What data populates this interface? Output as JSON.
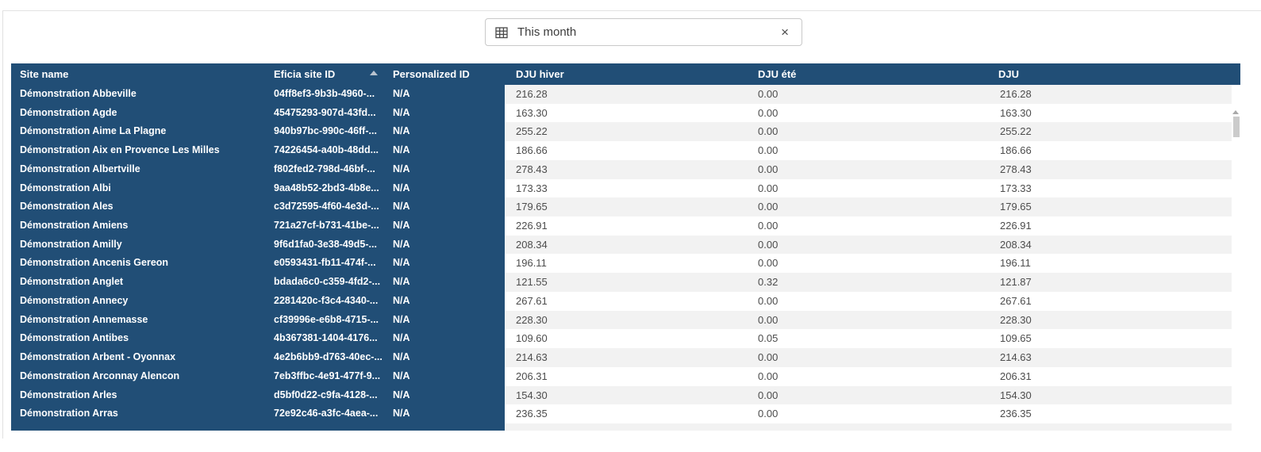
{
  "filter": {
    "icon": "calendar-grid-icon",
    "value": "This month",
    "clear_label": "×"
  },
  "colors": {
    "header_bg": "#214e76",
    "frozen_bg": "#214e76",
    "stripe": "#f2f2f2",
    "header_text": "#ffffff",
    "body_text": "#4c4c4c",
    "border": "#c9c9c9"
  },
  "table": {
    "columns": [
      {
        "key": "site",
        "label": "Site name"
      },
      {
        "key": "id",
        "label": "Eficia site ID",
        "sorted": "asc"
      },
      {
        "key": "pers",
        "label": "Personalized ID"
      },
      {
        "key": "hiver",
        "label": "DJU hiver"
      },
      {
        "key": "ete",
        "label": "DJU été"
      },
      {
        "key": "dju",
        "label": "DJU"
      }
    ],
    "rows": [
      {
        "site": "Démonstration Abbeville",
        "id": "04ff8ef3-9b3b-4960-...",
        "pers": "N/A",
        "hiver": "216.28",
        "ete": "0.00",
        "dju": "216.28"
      },
      {
        "site": "Démonstration Agde",
        "id": "45475293-907d-43fd...",
        "pers": "N/A",
        "hiver": "163.30",
        "ete": "0.00",
        "dju": "163.30"
      },
      {
        "site": "Démonstration Aime La Plagne",
        "id": "940b97bc-990c-46ff-...",
        "pers": "N/A",
        "hiver": "255.22",
        "ete": "0.00",
        "dju": "255.22"
      },
      {
        "site": "Démonstration Aix en Provence Les Milles",
        "id": "74226454-a40b-48dd...",
        "pers": "N/A",
        "hiver": "186.66",
        "ete": "0.00",
        "dju": "186.66"
      },
      {
        "site": "Démonstration Albertville",
        "id": "f802fed2-798d-46bf-...",
        "pers": "N/A",
        "hiver": "278.43",
        "ete": "0.00",
        "dju": "278.43"
      },
      {
        "site": "Démonstration Albi",
        "id": "9aa48b52-2bd3-4b8e...",
        "pers": "N/A",
        "hiver": "173.33",
        "ete": "0.00",
        "dju": "173.33"
      },
      {
        "site": "Démonstration Ales",
        "id": "c3d72595-4f60-4e3d-...",
        "pers": "N/A",
        "hiver": "179.65",
        "ete": "0.00",
        "dju": "179.65"
      },
      {
        "site": "Démonstration Amiens",
        "id": "721a27cf-b731-41be-...",
        "pers": "N/A",
        "hiver": "226.91",
        "ete": "0.00",
        "dju": "226.91"
      },
      {
        "site": "Démonstration Amilly",
        "id": "9f6d1fa0-3e38-49d5-...",
        "pers": "N/A",
        "hiver": "208.34",
        "ete": "0.00",
        "dju": "208.34"
      },
      {
        "site": "Démonstration Ancenis Gereon",
        "id": "e0593431-fb11-474f-...",
        "pers": "N/A",
        "hiver": "196.11",
        "ete": "0.00",
        "dju": "196.11"
      },
      {
        "site": "Démonstration Anglet",
        "id": "bdada6c0-c359-4fd2-...",
        "pers": "N/A",
        "hiver": "121.55",
        "ete": "0.32",
        "dju": "121.87"
      },
      {
        "site": "Démonstration Annecy",
        "id": "2281420c-f3c4-4340-...",
        "pers": "N/A",
        "hiver": "267.61",
        "ete": "0.00",
        "dju": "267.61"
      },
      {
        "site": "Démonstration Annemasse",
        "id": "cf39996e-e6b8-4715-...",
        "pers": "N/A",
        "hiver": "228.30",
        "ete": "0.00",
        "dju": "228.30"
      },
      {
        "site": "Démonstration Antibes",
        "id": "4b367381-1404-4176...",
        "pers": "N/A",
        "hiver": "109.60",
        "ete": "0.05",
        "dju": "109.65"
      },
      {
        "site": "Démonstration Arbent - Oyonnax",
        "id": "4e2b6bb9-d763-40ec-...",
        "pers": "N/A",
        "hiver": "214.63",
        "ete": "0.00",
        "dju": "214.63"
      },
      {
        "site": "Démonstration Arconnay Alencon",
        "id": "7eb3ffbc-4e91-477f-9...",
        "pers": "N/A",
        "hiver": "206.31",
        "ete": "0.00",
        "dju": "206.31"
      },
      {
        "site": "Démonstration Arles",
        "id": "d5bf0d22-c9fa-4128-...",
        "pers": "N/A",
        "hiver": "154.30",
        "ete": "0.00",
        "dju": "154.30"
      },
      {
        "site": "Démonstration Arras",
        "id": "72e92c46-a3fc-4aea-...",
        "pers": "N/A",
        "hiver": "236.35",
        "ete": "0.00",
        "dju": "236.35"
      }
    ]
  }
}
